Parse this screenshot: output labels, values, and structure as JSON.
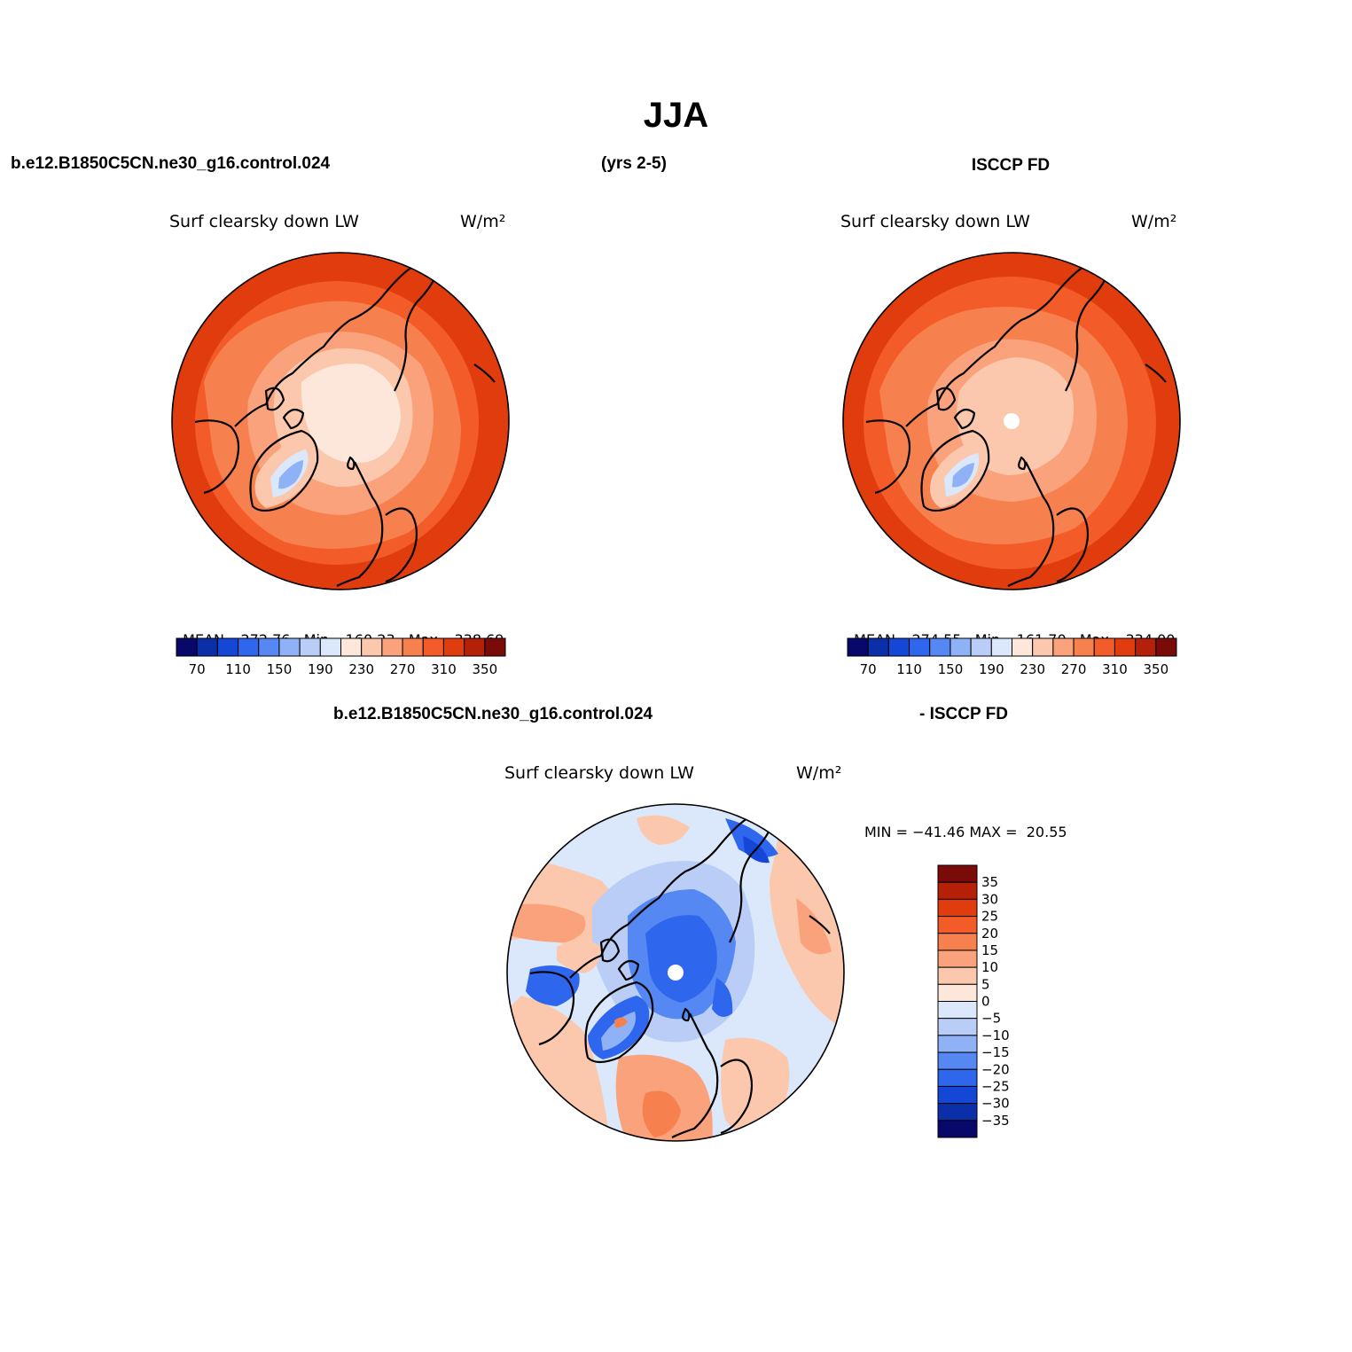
{
  "title": "JJA",
  "top": {
    "case_name": "b.e12.B1850C5CN.ne30_g16.control.024",
    "years": "(yrs 2-5)",
    "obs_name": "ISCCP FD"
  },
  "panels": [
    {
      "variable": "Surf clearsky down LW",
      "units": "W/m²",
      "mean_label": "MEAN=",
      "mean": "272.76",
      "min_label": "Min=",
      "min": "160.23",
      "max_label": "Max=",
      "max": "338.69",
      "has_pole_hole": false
    },
    {
      "variable": "Surf clearsky down LW",
      "units": "W/m²",
      "mean_label": "MEAN=",
      "mean": "274.55",
      "min_label": "Min=",
      "min": "161.70",
      "max_label": "Max=",
      "max": "334.00",
      "has_pole_hole": true
    }
  ],
  "main_colorbar": {
    "colors": [
      "#08086b",
      "#0b2fa8",
      "#1447d6",
      "#2f66ee",
      "#5588f2",
      "#8fb1f5",
      "#b9cdf7",
      "#dbe8fb",
      "#fde7da",
      "#fcc8ad",
      "#f9a27c",
      "#f7804f",
      "#f35b28",
      "#e03c0e",
      "#b52108",
      "#7a0b08"
    ],
    "labels": [
      "70",
      "110",
      "150",
      "190",
      "230",
      "270",
      "310",
      "350"
    ]
  },
  "diff": {
    "case_name": "b.e12.B1850C5CN.ne30_g16.control.024",
    "obs_name": "- ISCCP FD",
    "variable": "Surf clearsky down LW",
    "units": "W/m²",
    "minmax_text": "MIN = −41.46 MAX =  20.55",
    "colorbar": {
      "colors_top_to_bottom": [
        "#7a0b08",
        "#b52108",
        "#e03c0e",
        "#f35b28",
        "#f7804f",
        "#f9a27c",
        "#fcc8ad",
        "#fde7da",
        "#dbe8fb",
        "#b9cdf7",
        "#8fb1f5",
        "#5588f2",
        "#2f66ee",
        "#1447d6",
        "#0b2fa8",
        "#08086b"
      ],
      "labels": [
        "35",
        "30",
        "25",
        "20",
        "15",
        "10",
        "5",
        "0",
        "−5",
        "−10",
        "−15",
        "−20",
        "−25",
        "−30",
        "−35"
      ]
    }
  }
}
